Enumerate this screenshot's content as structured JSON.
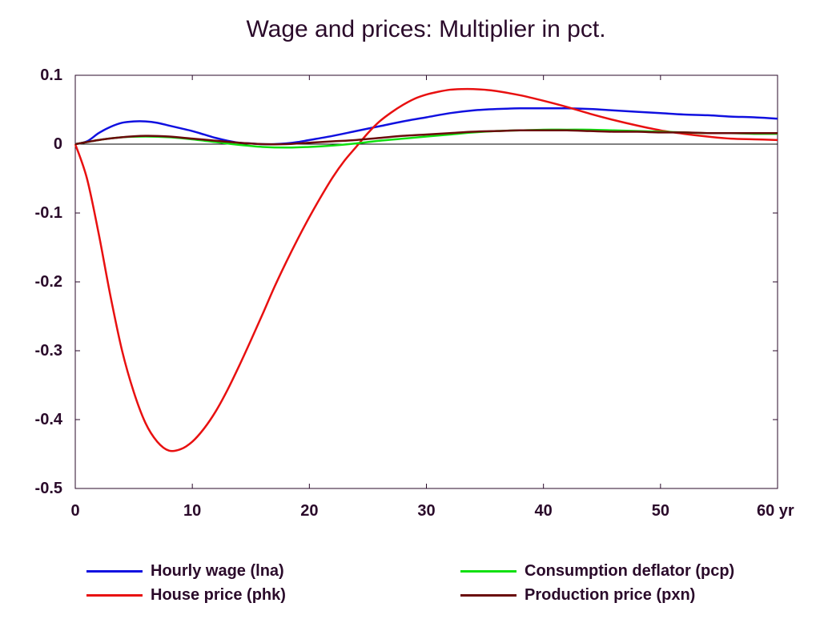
{
  "chart_data": {
    "type": "line",
    "title": "Wage and prices: Multiplier in pct.",
    "x_unit_label": "yr",
    "xlim": [
      0,
      60
    ],
    "ylim": [
      -0.5,
      0.1
    ],
    "x_ticks": [
      0,
      10,
      20,
      30,
      40,
      50,
      60
    ],
    "x_tick_labels": [
      "0",
      "10",
      "20",
      "30",
      "40",
      "50",
      "60 yr"
    ],
    "y_ticks": [
      0.1,
      0,
      -0.1,
      -0.2,
      -0.3,
      -0.4,
      -0.5
    ],
    "y_tick_labels": [
      "0.1",
      "0",
      "-0.1",
      "-0.2",
      "-0.3",
      "-0.4",
      "-0.5"
    ],
    "zero_line": true,
    "legend_position": "bottom",
    "series": [
      {
        "name": "Hourly wage (lna)",
        "color": "#1010e0",
        "points": [
          [
            0,
            0
          ],
          [
            1,
            0.004
          ],
          [
            2,
            0.016
          ],
          [
            3,
            0.025
          ],
          [
            4,
            0.031
          ],
          [
            5,
            0.033
          ],
          [
            6,
            0.033
          ],
          [
            7,
            0.031
          ],
          [
            8,
            0.027
          ],
          [
            9,
            0.023
          ],
          [
            10,
            0.019
          ],
          [
            11,
            0.014
          ],
          [
            12,
            0.009
          ],
          [
            13,
            0.005
          ],
          [
            14,
            0.002
          ],
          [
            15,
            0.001
          ],
          [
            16,
            0.0
          ],
          [
            17,
            0.0
          ],
          [
            18,
            0.001
          ],
          [
            19,
            0.003
          ],
          [
            20,
            0.006
          ],
          [
            22,
            0.012
          ],
          [
            24,
            0.019
          ],
          [
            26,
            0.026
          ],
          [
            28,
            0.033
          ],
          [
            30,
            0.039
          ],
          [
            32,
            0.045
          ],
          [
            34,
            0.049
          ],
          [
            36,
            0.051
          ],
          [
            38,
            0.052
          ],
          [
            40,
            0.052
          ],
          [
            42,
            0.052
          ],
          [
            44,
            0.051
          ],
          [
            46,
            0.049
          ],
          [
            48,
            0.047
          ],
          [
            50,
            0.045
          ],
          [
            52,
            0.043
          ],
          [
            54,
            0.042
          ],
          [
            56,
            0.04
          ],
          [
            58,
            0.039
          ],
          [
            60,
            0.037
          ]
        ]
      },
      {
        "name": "House price (phk)",
        "color": "#e81010",
        "points": [
          [
            0,
            0
          ],
          [
            1,
            -0.05
          ],
          [
            2,
            -0.13
          ],
          [
            3,
            -0.22
          ],
          [
            4,
            -0.3
          ],
          [
            5,
            -0.36
          ],
          [
            6,
            -0.405
          ],
          [
            7,
            -0.432
          ],
          [
            8,
            -0.445
          ],
          [
            9,
            -0.443
          ],
          [
            10,
            -0.432
          ],
          [
            11,
            -0.413
          ],
          [
            12,
            -0.388
          ],
          [
            13,
            -0.357
          ],
          [
            14,
            -0.322
          ],
          [
            15,
            -0.285
          ],
          [
            16,
            -0.247
          ],
          [
            17,
            -0.208
          ],
          [
            18,
            -0.172
          ],
          [
            19,
            -0.138
          ],
          [
            20,
            -0.106
          ],
          [
            21,
            -0.076
          ],
          [
            22,
            -0.048
          ],
          [
            23,
            -0.024
          ],
          [
            24,
            -0.004
          ],
          [
            25,
            0.016
          ],
          [
            26,
            0.033
          ],
          [
            27,
            0.046
          ],
          [
            28,
            0.057
          ],
          [
            29,
            0.066
          ],
          [
            30,
            0.072
          ],
          [
            31,
            0.076
          ],
          [
            32,
            0.079
          ],
          [
            33,
            0.08
          ],
          [
            34,
            0.08
          ],
          [
            35,
            0.079
          ],
          [
            36,
            0.077
          ],
          [
            38,
            0.071
          ],
          [
            40,
            0.063
          ],
          [
            42,
            0.054
          ],
          [
            44,
            0.044
          ],
          [
            46,
            0.035
          ],
          [
            48,
            0.027
          ],
          [
            50,
            0.02
          ],
          [
            52,
            0.015
          ],
          [
            54,
            0.011
          ],
          [
            56,
            0.008
          ],
          [
            58,
            0.007
          ],
          [
            60,
            0.006
          ]
        ]
      },
      {
        "name": "Consumption deflator (pcp)",
        "color": "#10e010",
        "points": [
          [
            0,
            0
          ],
          [
            2,
            0.006
          ],
          [
            4,
            0.01
          ],
          [
            6,
            0.011
          ],
          [
            8,
            0.01
          ],
          [
            10,
            0.007
          ],
          [
            12,
            0.003
          ],
          [
            14,
            -0.001
          ],
          [
            16,
            -0.004
          ],
          [
            18,
            -0.005
          ],
          [
            20,
            -0.004
          ],
          [
            22,
            -0.002
          ],
          [
            24,
            0.001
          ],
          [
            26,
            0.005
          ],
          [
            28,
            0.008
          ],
          [
            30,
            0.011
          ],
          [
            32,
            0.014
          ],
          [
            34,
            0.017
          ],
          [
            36,
            0.019
          ],
          [
            38,
            0.02
          ],
          [
            40,
            0.021
          ],
          [
            42,
            0.021
          ],
          [
            44,
            0.021
          ],
          [
            46,
            0.02
          ],
          [
            48,
            0.019
          ],
          [
            50,
            0.018
          ],
          [
            52,
            0.017
          ],
          [
            54,
            0.016
          ],
          [
            56,
            0.016
          ],
          [
            58,
            0.015
          ],
          [
            60,
            0.015
          ]
        ]
      },
      {
        "name": "Production price (pxn)",
        "color": "#6a0a0a",
        "points": [
          [
            0,
            0
          ],
          [
            2,
            0.006
          ],
          [
            4,
            0.01
          ],
          [
            6,
            0.012
          ],
          [
            8,
            0.011
          ],
          [
            10,
            0.008
          ],
          [
            12,
            0.005
          ],
          [
            14,
            0.002
          ],
          [
            16,
            0.0
          ],
          [
            18,
            0.0
          ],
          [
            20,
            0.002
          ],
          [
            22,
            0.004
          ],
          [
            24,
            0.006
          ],
          [
            26,
            0.009
          ],
          [
            28,
            0.012
          ],
          [
            30,
            0.014
          ],
          [
            32,
            0.016
          ],
          [
            34,
            0.018
          ],
          [
            36,
            0.019
          ],
          [
            38,
            0.02
          ],
          [
            40,
            0.02
          ],
          [
            42,
            0.02
          ],
          [
            44,
            0.019
          ],
          [
            46,
            0.018
          ],
          [
            48,
            0.018
          ],
          [
            50,
            0.017
          ],
          [
            52,
            0.017
          ],
          [
            54,
            0.016
          ],
          [
            56,
            0.016
          ],
          [
            58,
            0.016
          ],
          [
            60,
            0.016
          ]
        ]
      }
    ]
  }
}
